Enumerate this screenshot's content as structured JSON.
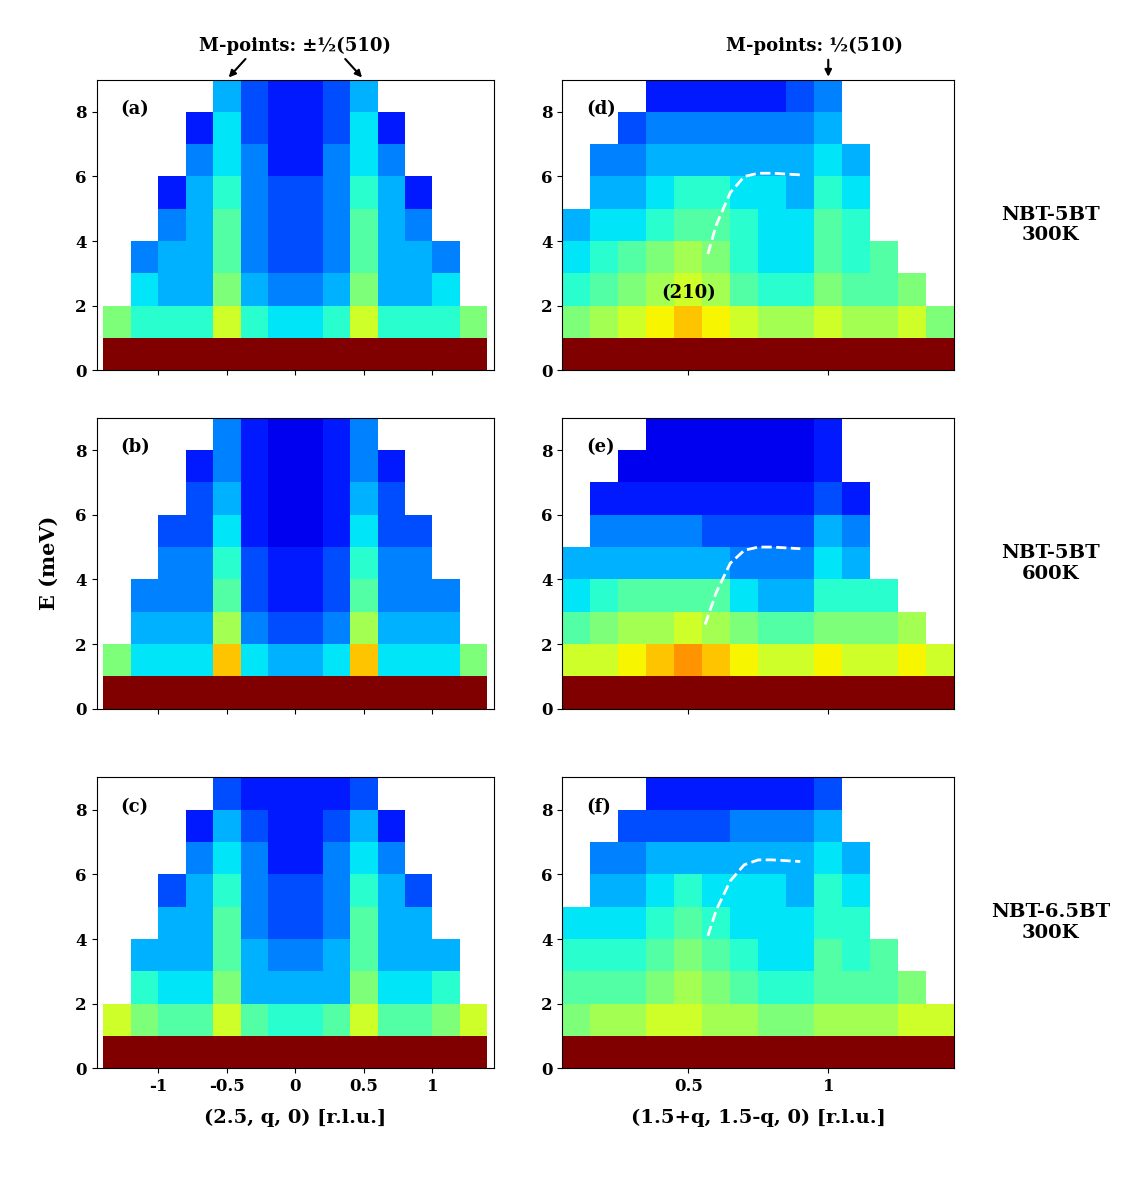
{
  "chart_data": [
    {
      "type": "heatmap",
      "panel_label": "(a)",
      "xlim": [
        -1.45,
        1.45
      ],
      "ylim": [
        0,
        9
      ],
      "xticks": [
        -1,
        -0.5,
        0,
        0.5,
        1
      ],
      "yticks": [
        0,
        2,
        4,
        6,
        8
      ],
      "tick_labels": "y",
      "header": {
        "text": "M-points: ±½(510)",
        "x": 0,
        "arrow_x": [
          -0.5,
          0.5
        ],
        "arrow_from_x": [
          -0.35,
          0.35
        ]
      },
      "x_edges": [
        -1.4,
        -1.2,
        -1.0,
        -0.8,
        -0.6,
        -0.4,
        -0.2,
        0.0,
        0.2,
        0.4,
        0.6,
        0.8,
        1.0,
        1.2,
        1.4
      ],
      "y_edges": [
        0,
        1,
        2,
        3,
        4,
        5,
        6,
        7,
        8,
        9
      ],
      "color_range": [
        0,
        10
      ],
      "cells": [
        [
          10,
          10,
          10,
          10,
          10,
          10,
          10,
          10,
          10,
          10,
          10,
          10,
          10,
          10
        ],
        [
          5,
          4,
          4,
          4,
          6,
          4,
          3.5,
          3.5,
          4,
          6,
          4,
          4,
          4,
          5
        ],
        [
          null,
          3.5,
          3,
          3,
          5,
          3,
          2.5,
          2.5,
          3,
          5,
          3,
          3,
          3.5,
          null
        ],
        [
          null,
          2.5,
          3,
          3,
          4.5,
          2.5,
          2,
          2,
          2.5,
          4.5,
          3,
          3,
          2.5,
          null
        ],
        [
          null,
          null,
          2.5,
          3,
          4.5,
          2.5,
          2,
          2,
          2.5,
          4.5,
          3,
          2.5,
          null,
          null
        ],
        [
          null,
          null,
          1.5,
          3,
          4,
          2.5,
          2,
          2,
          2.5,
          4,
          3,
          1.5,
          null,
          null
        ],
        [
          null,
          null,
          null,
          2.5,
          3.5,
          2.5,
          1.5,
          1.5,
          2.5,
          3.5,
          2.5,
          null,
          null,
          null
        ],
        [
          null,
          null,
          null,
          1.5,
          3.5,
          2,
          1.5,
          1.5,
          2,
          3.5,
          1.5,
          null,
          null,
          null
        ],
        [
          null,
          null,
          null,
          null,
          3,
          2,
          1.5,
          1.5,
          2,
          3,
          null,
          null,
          null,
          null
        ]
      ]
    },
    {
      "type": "heatmap",
      "panel_label": "(d)",
      "xlim": [
        0.05,
        1.45
      ],
      "ylim": [
        0,
        9
      ],
      "xticks": [
        0.5,
        1
      ],
      "yticks": [
        0,
        2,
        4,
        6,
        8
      ],
      "tick_labels": "y",
      "header": {
        "text": "M-points: ½(510)",
        "x": 0.95,
        "arrow_x": [
          1.0
        ],
        "arrow_from_x": [
          1.0
        ]
      },
      "side_label": "NBT-5BT\n300K",
      "annotations": [
        {
          "text": "(210)",
          "x": 0.5,
          "y": 2.1
        }
      ],
      "dispersion": {
        "x": [
          0.57,
          0.6,
          0.65,
          0.7,
          0.75,
          0.8,
          0.9
        ],
        "y": [
          3.6,
          4.5,
          5.5,
          6.0,
          6.1,
          6.1,
          6.05
        ],
        "color": "#ffffff",
        "line_style": "dashed"
      },
      "x_edges": [
        0.05,
        0.15,
        0.25,
        0.35,
        0.45,
        0.55,
        0.65,
        0.75,
        0.85,
        0.95,
        1.05,
        1.15,
        1.25,
        1.35,
        1.45
      ],
      "y_edges": [
        0,
        1,
        2,
        3,
        4,
        5,
        6,
        7,
        8,
        9
      ],
      "color_range": [
        0,
        10
      ],
      "cells": [
        [
          10,
          10,
          10,
          10,
          10,
          10,
          10,
          10,
          10,
          10,
          10,
          10,
          10,
          10
        ],
        [
          5,
          5.5,
          6,
          6.5,
          7,
          6.5,
          6,
          5.5,
          5.5,
          6,
          5.5,
          5.5,
          6,
          5
        ],
        [
          4,
          4.5,
          5,
          5.5,
          6,
          5.5,
          4.5,
          4,
          4,
          5,
          4.5,
          4.5,
          5,
          null
        ],
        [
          3.5,
          4,
          4.5,
          5,
          5.5,
          5,
          4,
          3.5,
          3.5,
          4.5,
          4,
          4.5,
          null,
          null
        ],
        [
          3,
          3.5,
          3.5,
          4,
          4.5,
          4.5,
          4,
          3.5,
          3.5,
          4.5,
          4,
          null,
          null,
          null
        ],
        [
          null,
          3,
          3,
          3.5,
          4,
          4,
          3.5,
          3.5,
          3,
          4,
          3.5,
          null,
          null,
          null
        ],
        [
          null,
          2.5,
          2.5,
          3,
          3,
          3,
          3,
          3,
          3,
          3.5,
          3,
          null,
          null,
          null
        ],
        [
          null,
          null,
          2,
          2.5,
          2.5,
          2.5,
          2.5,
          2.5,
          2.5,
          3,
          null,
          null,
          null,
          null
        ],
        [
          null,
          null,
          null,
          1.5,
          1.5,
          1.5,
          1.5,
          1.5,
          2,
          2.5,
          null,
          null,
          null,
          null
        ]
      ]
    },
    {
      "type": "heatmap",
      "panel_label": "(b)",
      "xlim": [
        -1.45,
        1.45
      ],
      "ylim": [
        0,
        9
      ],
      "xticks": [
        -1,
        -0.5,
        0,
        0.5,
        1
      ],
      "yticks": [
        0,
        2,
        4,
        6,
        8
      ],
      "tick_labels": "y",
      "ylabel": "E (meV)",
      "x_edges": [
        -1.4,
        -1.2,
        -1.0,
        -0.8,
        -0.6,
        -0.4,
        -0.2,
        0.0,
        0.2,
        0.4,
        0.6,
        0.8,
        1.0,
        1.2,
        1.4
      ],
      "y_edges": [
        0,
        1,
        2,
        3,
        4,
        5,
        6,
        7,
        8,
        9
      ],
      "color_range": [
        0,
        10
      ],
      "cells": [
        [
          10,
          10,
          10,
          10,
          10,
          10,
          10,
          10,
          10,
          10,
          10,
          10,
          10,
          10
        ],
        [
          5,
          3.5,
          3.5,
          3.5,
          7,
          3.5,
          3,
          3,
          3.5,
          7,
          3.5,
          3.5,
          3.5,
          5
        ],
        [
          null,
          3,
          3,
          3,
          5.5,
          2.5,
          2,
          2,
          2.5,
          5.5,
          3,
          3,
          3,
          null
        ],
        [
          null,
          2.5,
          2.5,
          2.5,
          4.5,
          2,
          1.5,
          1.5,
          2,
          4.5,
          2.5,
          2.5,
          2.5,
          null
        ],
        [
          null,
          null,
          2.5,
          2.5,
          4,
          2,
          1.5,
          1.5,
          2,
          4,
          2.5,
          2.5,
          null,
          null
        ],
        [
          null,
          null,
          2,
          2,
          3.5,
          1.5,
          1,
          1,
          1.5,
          3.5,
          2,
          2,
          null,
          null
        ],
        [
          null,
          null,
          null,
          2,
          3,
          1.5,
          1,
          1,
          1.5,
          3,
          2,
          null,
          null,
          null
        ],
        [
          null,
          null,
          null,
          1.5,
          2.5,
          1.5,
          1,
          1,
          1.5,
          2.5,
          1.5,
          null,
          null,
          null
        ],
        [
          null,
          null,
          null,
          null,
          2.5,
          1.5,
          1,
          1,
          1.5,
          2.5,
          null,
          null,
          null,
          null
        ]
      ]
    },
    {
      "type": "heatmap",
      "panel_label": "(e)",
      "xlim": [
        0.05,
        1.45
      ],
      "ylim": [
        0,
        9
      ],
      "xticks": [
        0.5,
        1
      ],
      "yticks": [
        0,
        2,
        4,
        6,
        8
      ],
      "tick_labels": "y",
      "side_label": "NBT-5BT\n600K",
      "dispersion": {
        "x": [
          0.56,
          0.6,
          0.65,
          0.7,
          0.75,
          0.8,
          0.9
        ],
        "y": [
          2.6,
          3.6,
          4.5,
          4.9,
          5.0,
          5.0,
          4.95
        ],
        "color": "#ffffff",
        "line_style": "dashed"
      },
      "x_edges": [
        0.05,
        0.15,
        0.25,
        0.35,
        0.45,
        0.55,
        0.65,
        0.75,
        0.85,
        0.95,
        1.05,
        1.15,
        1.25,
        1.35,
        1.45
      ],
      "y_edges": [
        0,
        1,
        2,
        3,
        4,
        5,
        6,
        7,
        8,
        9
      ],
      "color_range": [
        0,
        10
      ],
      "cells": [
        [
          10,
          10,
          10,
          10,
          10,
          10,
          10,
          10,
          10,
          10,
          10,
          10,
          10,
          10
        ],
        [
          6,
          6,
          6.5,
          7,
          7.5,
          7,
          6.5,
          6,
          6,
          6.5,
          6,
          6,
          6.5,
          6
        ],
        [
          4.5,
          5,
          5.5,
          5.5,
          6,
          5.5,
          5,
          4.5,
          4.5,
          5,
          5,
          5,
          5.5,
          null
        ],
        [
          3.5,
          4,
          4.5,
          4.5,
          4.5,
          4.5,
          3.5,
          3,
          3,
          4,
          4,
          4,
          null,
          null
        ],
        [
          3,
          3,
          3,
          3,
          3,
          3,
          2.5,
          2.5,
          2.5,
          3.5,
          3,
          null,
          null,
          null
        ],
        [
          null,
          2.5,
          2.5,
          2.5,
          2.5,
          2,
          2,
          2,
          2,
          3,
          2.5,
          null,
          null,
          null
        ],
        [
          null,
          1.5,
          1.5,
          1.5,
          1.5,
          1.5,
          1.5,
          1.5,
          1.5,
          2,
          1.5,
          null,
          null,
          null
        ],
        [
          null,
          null,
          1,
          1,
          1,
          1,
          1,
          1,
          1,
          1.5,
          null,
          null,
          null,
          null
        ],
        [
          null,
          null,
          null,
          1,
          1,
          1,
          1,
          1,
          1,
          1.5,
          null,
          null,
          null,
          null
        ]
      ]
    },
    {
      "type": "heatmap",
      "panel_label": "(c)",
      "xlim": [
        -1.45,
        1.45
      ],
      "ylim": [
        0,
        9
      ],
      "xticks": [
        -1,
        -0.5,
        0,
        0.5,
        1
      ],
      "yticks": [
        0,
        2,
        4,
        6,
        8
      ],
      "xlabel": "(2.5, q, 0) [r.l.u.]",
      "x_edges": [
        -1.4,
        -1.2,
        -1.0,
        -0.8,
        -0.6,
        -0.4,
        -0.2,
        0.0,
        0.2,
        0.4,
        0.6,
        0.8,
        1.0,
        1.2,
        1.4
      ],
      "y_edges": [
        0,
        1,
        2,
        3,
        4,
        5,
        6,
        7,
        8,
        9
      ],
      "color_range": [
        0,
        10
      ],
      "cells": [
        [
          10,
          10,
          10,
          10,
          10,
          10,
          10,
          10,
          10,
          10,
          10,
          10,
          10,
          10
        ],
        [
          6,
          5,
          4.5,
          4.5,
          6,
          4.5,
          4,
          4,
          4.5,
          6,
          4.5,
          4.5,
          5,
          6
        ],
        [
          null,
          4,
          3.5,
          3.5,
          5,
          3,
          3,
          3,
          3,
          5,
          3.5,
          3.5,
          4,
          null
        ],
        [
          null,
          3,
          3,
          3,
          4.5,
          3,
          2.5,
          2.5,
          3,
          4.5,
          3,
          3,
          3,
          null
        ],
        [
          null,
          null,
          3,
          3,
          4.5,
          2.5,
          2,
          2,
          2.5,
          4.5,
          3,
          3,
          null,
          null
        ],
        [
          null,
          null,
          2,
          3,
          4,
          2.5,
          2,
          2,
          2.5,
          4,
          3,
          2,
          null,
          null
        ],
        [
          null,
          null,
          null,
          2.5,
          3.5,
          2.5,
          1.5,
          1.5,
          2.5,
          3.5,
          2.5,
          null,
          null,
          null
        ],
        [
          null,
          null,
          null,
          1.5,
          3,
          2,
          1.5,
          1.5,
          2,
          3,
          1.5,
          null,
          null,
          null
        ],
        [
          null,
          null,
          null,
          null,
          2,
          1.5,
          1.5,
          1.5,
          1.5,
          2,
          null,
          null,
          null,
          null
        ]
      ]
    },
    {
      "type": "heatmap",
      "panel_label": "(f)",
      "xlim": [
        0.05,
        1.45
      ],
      "ylim": [
        0,
        9
      ],
      "xticks": [
        0.5,
        1
      ],
      "yticks": [
        0,
        2,
        4,
        6,
        8
      ],
      "xlabel": "(1.5+q, 1.5-q, 0) [r.l.u.]",
      "side_label": "NBT-6.5BT\n300K",
      "dispersion": {
        "x": [
          0.57,
          0.6,
          0.65,
          0.7,
          0.75,
          0.8,
          0.9
        ],
        "y": [
          4.1,
          4.9,
          5.8,
          6.3,
          6.45,
          6.45,
          6.4
        ],
        "color": "#ffffff",
        "line_style": "dashed"
      },
      "x_edges": [
        0.05,
        0.15,
        0.25,
        0.35,
        0.45,
        0.55,
        0.65,
        0.75,
        0.85,
        0.95,
        1.05,
        1.15,
        1.25,
        1.35,
        1.45
      ],
      "y_edges": [
        0,
        1,
        2,
        3,
        4,
        5,
        6,
        7,
        8,
        9
      ],
      "color_range": [
        0,
        10
      ],
      "cells": [
        [
          10,
          10,
          10,
          10,
          10,
          10,
          10,
          10,
          10,
          10,
          10,
          10,
          10,
          10
        ],
        [
          5,
          5.5,
          5.5,
          6,
          6,
          5.5,
          5.5,
          5,
          5,
          5.5,
          5.5,
          5.5,
          6,
          6
        ],
        [
          4.5,
          4.5,
          4.5,
          5,
          5.5,
          5,
          4.5,
          4,
          4,
          4.5,
          4.5,
          4.5,
          5,
          null
        ],
        [
          4,
          4,
          4,
          4.5,
          5,
          4.5,
          4,
          3.5,
          3.5,
          4.5,
          4,
          4.5,
          null,
          null
        ],
        [
          3.5,
          3.5,
          3.5,
          4,
          4.5,
          4,
          3.5,
          3.5,
          3.5,
          4,
          4,
          null,
          null,
          null
        ],
        [
          null,
          3,
          3,
          3.5,
          4,
          3.5,
          3.5,
          3.5,
          3,
          4,
          3.5,
          null,
          null,
          null
        ],
        [
          null,
          2.5,
          2.5,
          3,
          3,
          3,
          3,
          3,
          3,
          3.5,
          3,
          null,
          null,
          null
        ],
        [
          null,
          null,
          2,
          2,
          2,
          2,
          2.5,
          2.5,
          2.5,
          3,
          null,
          null,
          null,
          null
        ],
        [
          null,
          null,
          null,
          1.5,
          1.5,
          1.5,
          1.5,
          1.5,
          1.5,
          2,
          null,
          null,
          null,
          null
        ]
      ]
    }
  ]
}
